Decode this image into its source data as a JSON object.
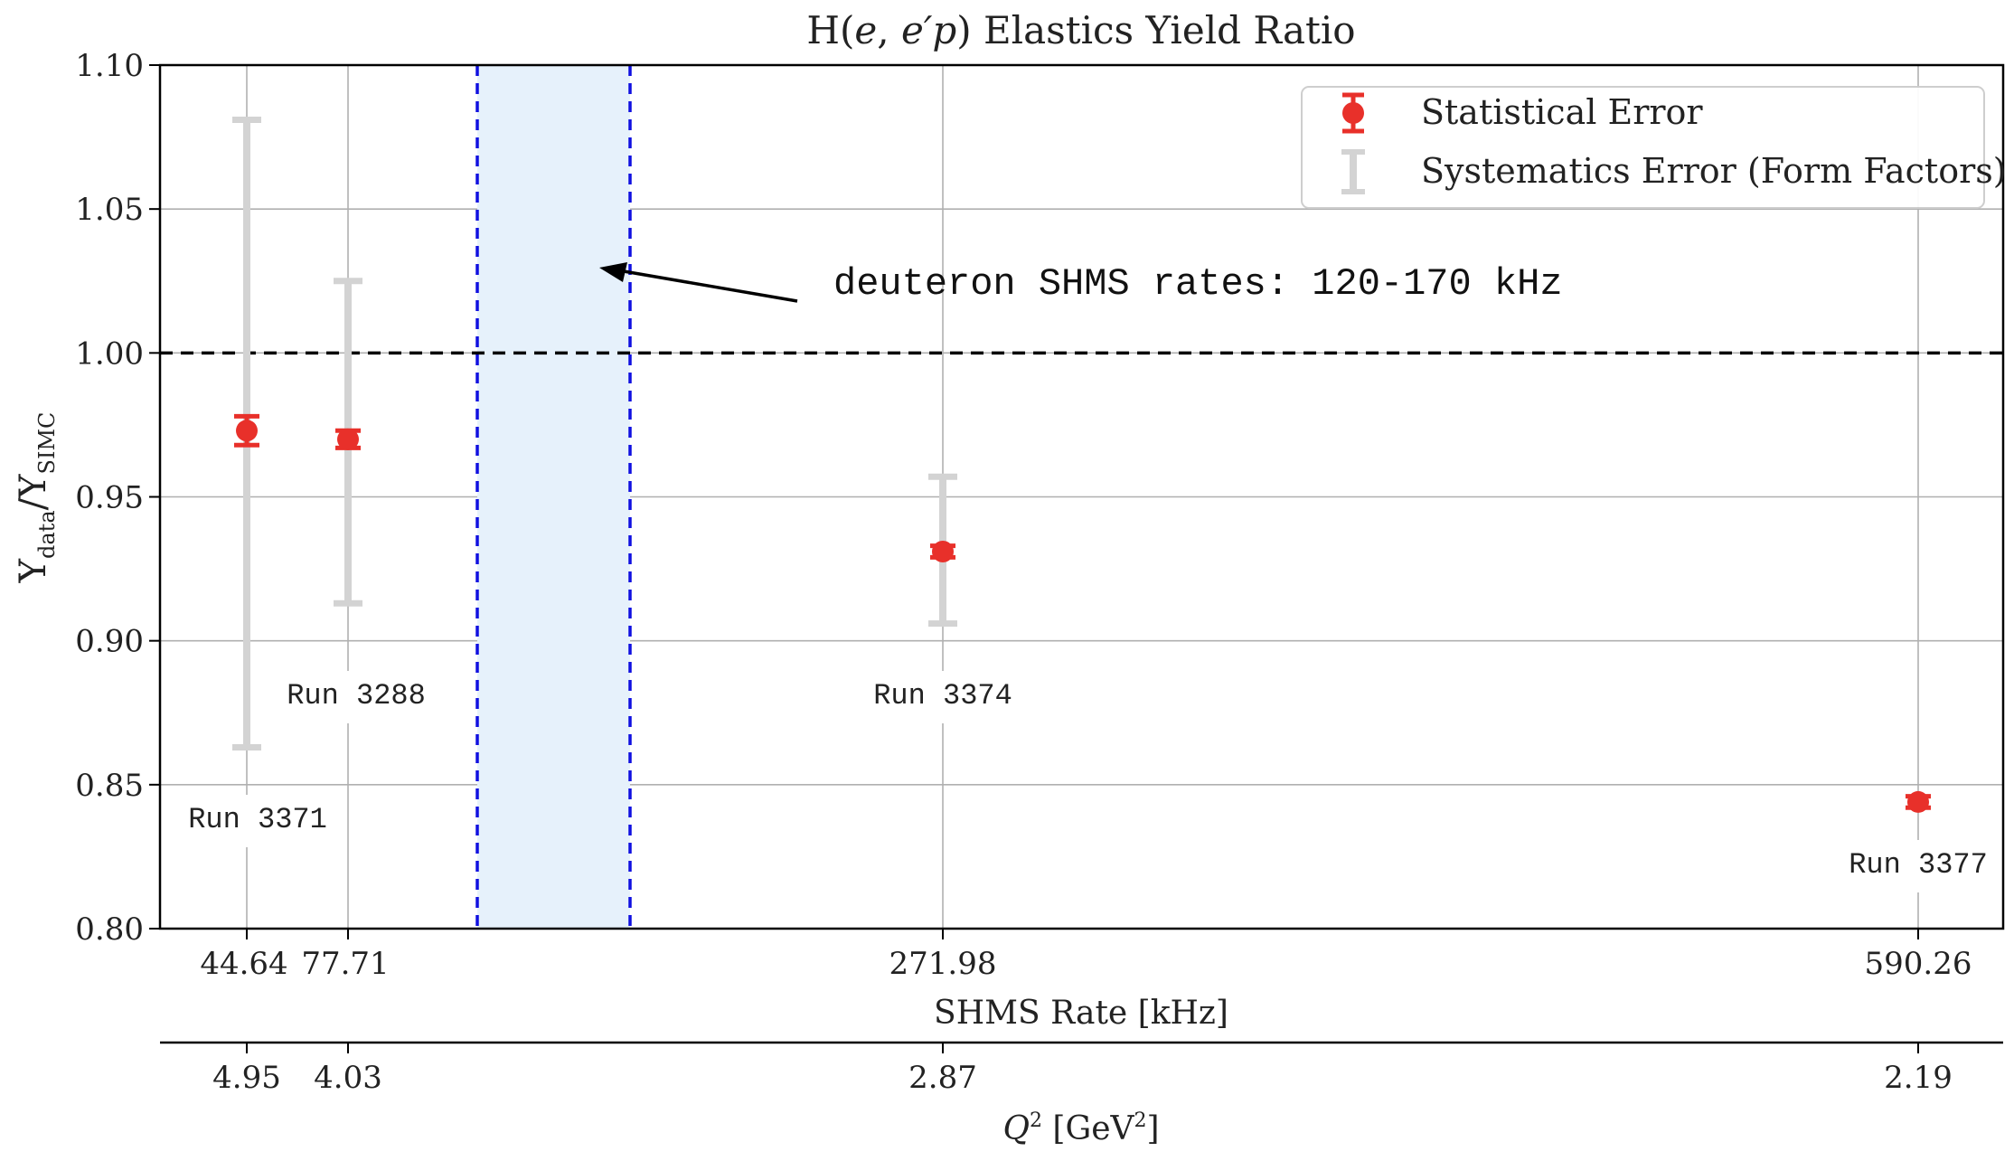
{
  "chart_data": {
    "type": "scatter",
    "title": "H(e, e′p) Elastics Yield Ratio",
    "ylabel": "Y_data/Y_SIMC",
    "xlabel": "SHMS Rate [kHz]",
    "x2label": "Q² [GeV²]",
    "ylim": [
      0.8,
      1.1
    ],
    "yticks": [
      "0.80",
      "0.85",
      "0.90",
      "0.95",
      "1.00",
      "1.05",
      "1.10"
    ],
    "grid": true,
    "legend_position": "top-right",
    "points": [
      {
        "run": "Run 3371",
        "rate": "44.64",
        "q2": "4.95",
        "ratio": 0.973,
        "stat_err": 0.005,
        "sys_low": 0.863,
        "sys_high": 1.081
      },
      {
        "run": "Run 3288",
        "rate": "77.71",
        "q2": "4.03",
        "ratio": 0.97,
        "stat_err": 0.003,
        "sys_low": 0.913,
        "sys_high": 1.025
      },
      {
        "run": "Run 3374",
        "rate": "271.98",
        "q2": "2.87",
        "ratio": 0.931,
        "stat_err": 0.002,
        "sys_low": 0.906,
        "sys_high": 0.957
      },
      {
        "run": "Run 3377",
        "rate": "590.26",
        "q2": "2.19",
        "ratio": 0.844,
        "stat_err": 0.002,
        "sys_low": 0.844,
        "sys_high": 0.844
      }
    ],
    "reference_line": 1.0,
    "band": {
      "from_kHz": 120,
      "to_kHz": 170
    },
    "annotation": "deuteron SHMS rates: 120-170 kHz",
    "legend": [
      {
        "label": "Statistical Error",
        "color": "#e8302a"
      },
      {
        "label": "Systematics Error (Form Factors)",
        "color": "#d3d3d3"
      }
    ],
    "colors": {
      "stat": "#e8302a",
      "sys": "#d3d3d3",
      "band_fill": "#e6f1fb",
      "band_edge": "#1010e0",
      "ref_line": "#000000"
    }
  }
}
